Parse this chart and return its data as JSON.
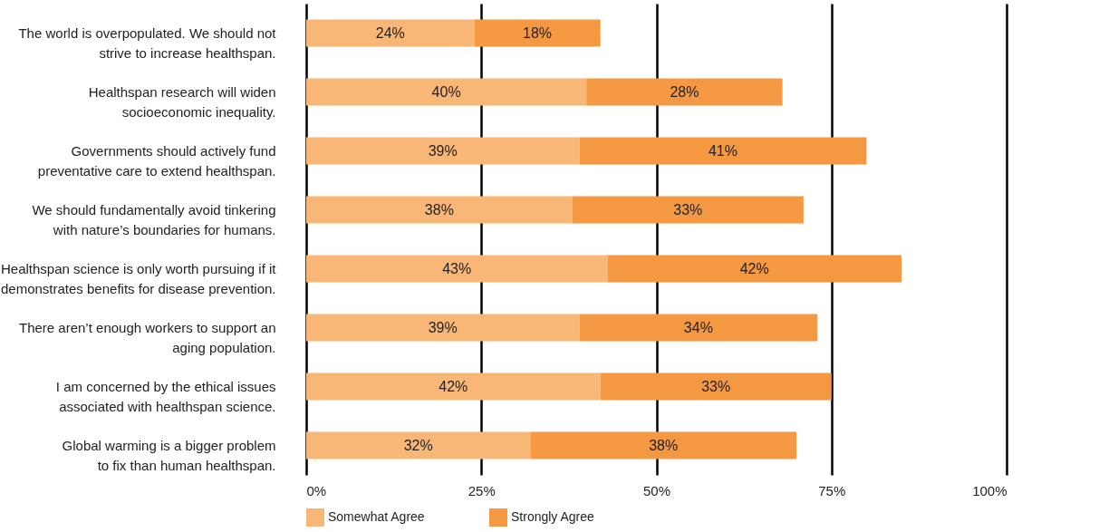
{
  "chart_data": {
    "type": "bar",
    "orientation": "horizontal",
    "stacked": true,
    "categories": [
      "The world is overpopulated. We should not\nstrive to increase healthspan.",
      "Healthspan research will widen\nsocioeconomic inequality.",
      "Governments should actively fund\npreventative care to extend healthspan.",
      "We should fundamentally avoid tinkering\nwith nature’s boundaries for humans.",
      "Healthspan science is only worth pursuing if it\ndemonstrates benefits for disease prevention.",
      "There aren’t enough workers to support an\naging population.",
      "I am concerned by the ethical issues\nassociated with healthspan science.",
      "Global warming is a bigger problem\nto fix than human healthspan."
    ],
    "series": [
      {
        "name": "Somewhat Agree",
        "color": "#f9b777",
        "values": [
          24,
          40,
          39,
          38,
          43,
          39,
          42,
          32
        ],
        "value_labels": [
          "24%",
          "40%",
          "39%",
          "38%",
          "43%",
          "39%",
          "42%",
          "32%"
        ]
      },
      {
        "name": "Strongly Agree",
        "color": "#f59842",
        "values": [
          18,
          28,
          41,
          33,
          42,
          34,
          33,
          38
        ],
        "value_labels": [
          "18%",
          "28%",
          "41%",
          "33%",
          "42%",
          "34%",
          "33%",
          "38%"
        ]
      }
    ],
    "xlim": [
      0,
      100
    ],
    "xticks": [
      {
        "value": 0,
        "label": "0%"
      },
      {
        "value": 25,
        "label": "25%"
      },
      {
        "value": 50,
        "label": "50%"
      },
      {
        "value": 75,
        "label": "75%"
      },
      {
        "value": 100,
        "label": "100%"
      }
    ],
    "grid": "x",
    "legend": "bottom"
  }
}
